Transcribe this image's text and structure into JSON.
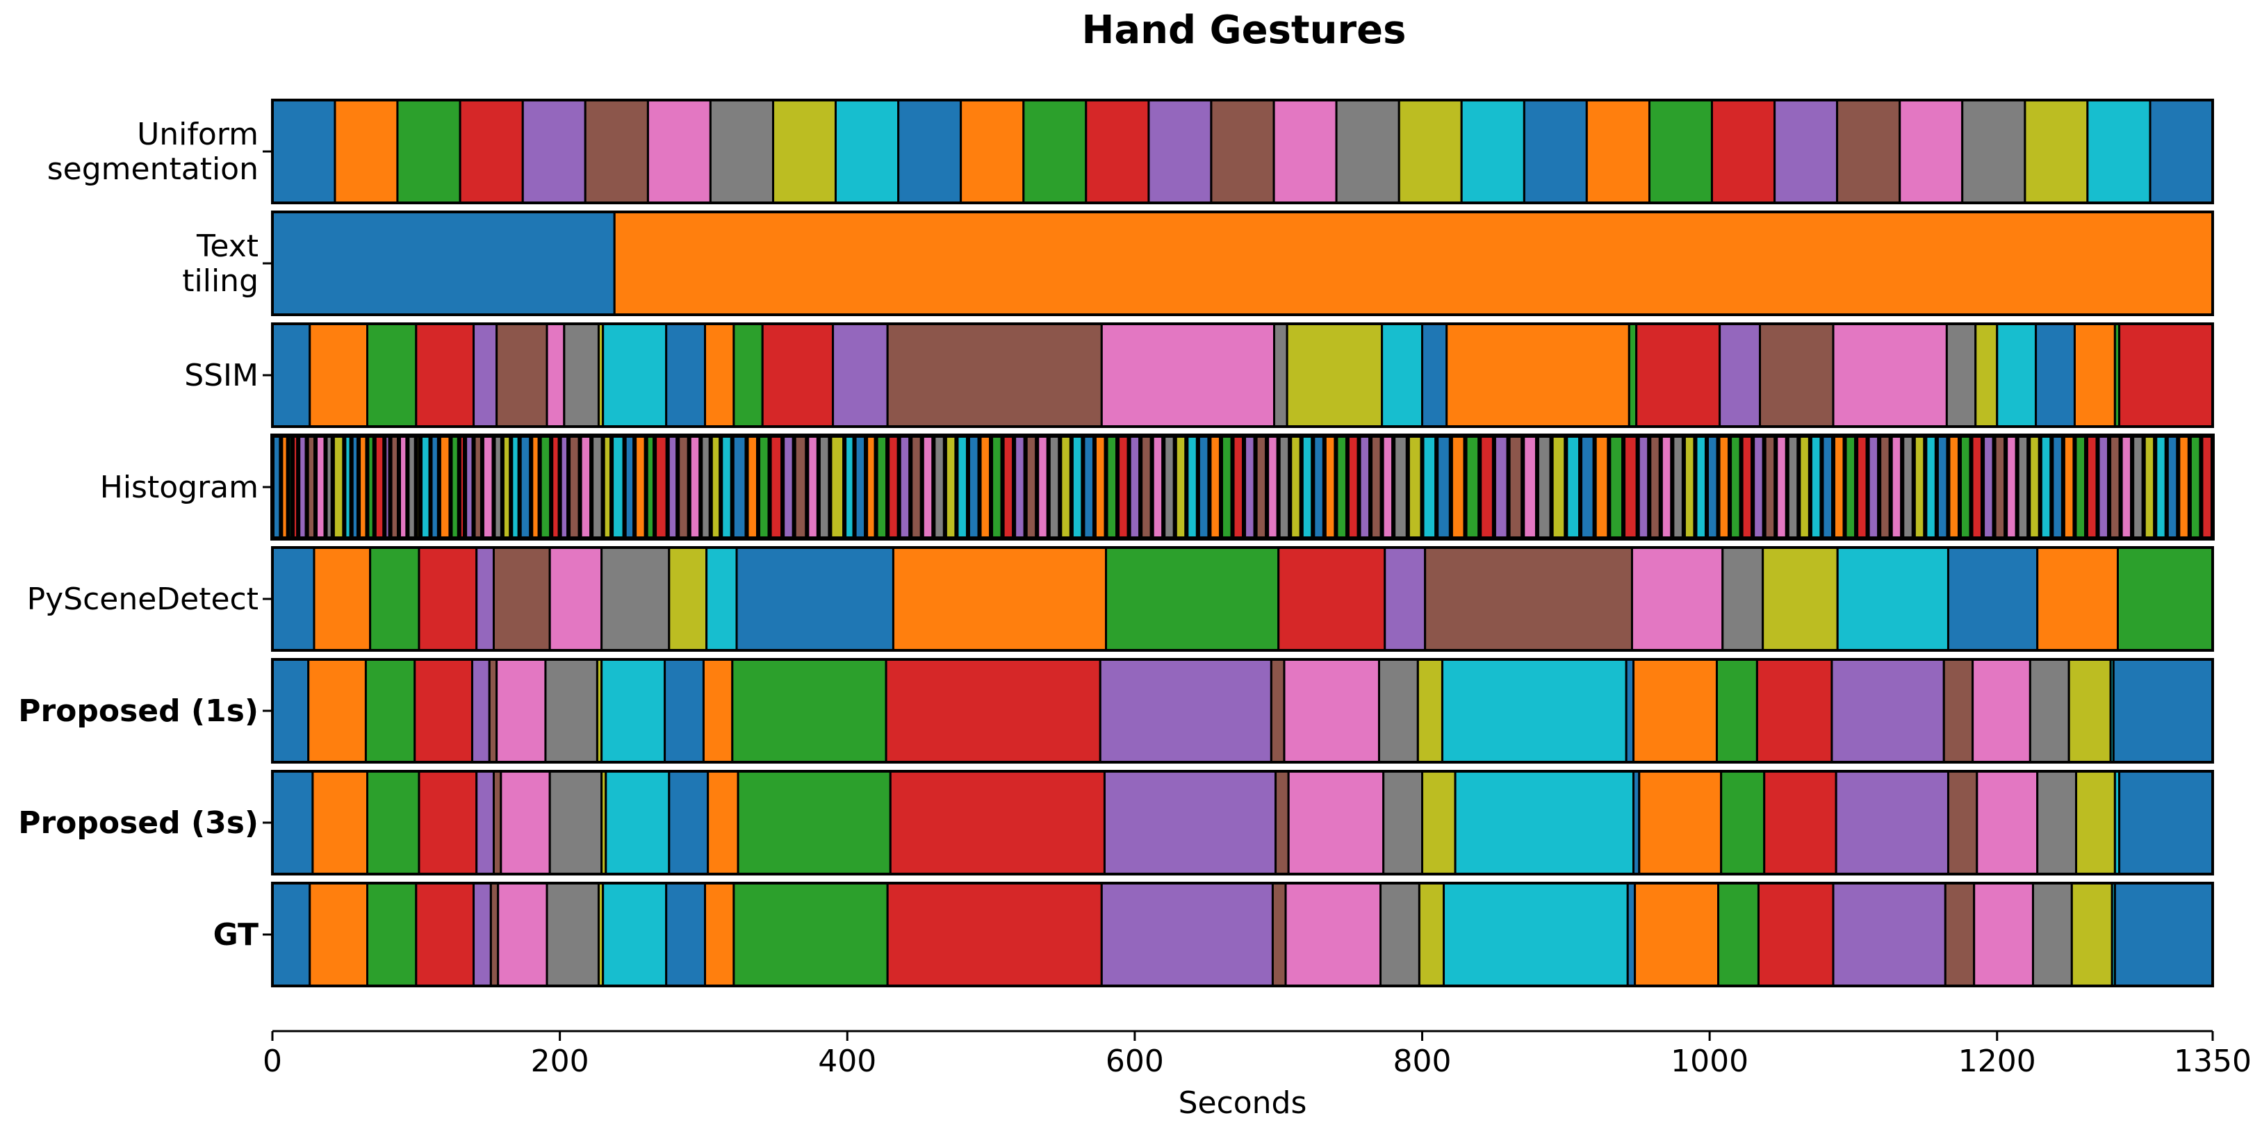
{
  "chart_data": {
    "type": "segmentation-timeline",
    "title": "Hand Gestures",
    "xlabel": "Seconds",
    "xlim": [
      0,
      1350
    ],
    "xticks": [
      0,
      200,
      400,
      600,
      800,
      1000,
      1200,
      1350
    ],
    "palette": [
      "#1f77b4",
      "#ff7f0e",
      "#2ca02c",
      "#d62728",
      "#9467bd",
      "#8c564b",
      "#e377c2",
      "#7f7f7f",
      "#bcbd22",
      "#17becf"
    ],
    "rows": [
      {
        "label_lines": [
          "Uniform",
          "segmentation"
        ],
        "bold": false,
        "boundaries": [
          0,
          43.5,
          87,
          130.6,
          174.2,
          217.7,
          261.3,
          304.8,
          348.4,
          391.9,
          435.5,
          479,
          522.6,
          566.1,
          609.7,
          653.2,
          696.8,
          740.3,
          783.9,
          827.4,
          871,
          914.5,
          958.1,
          1001.6,
          1045.2,
          1088.7,
          1132.3,
          1175.8,
          1219.4,
          1262.9,
          1306.5,
          1350
        ]
      },
      {
        "label_lines": [
          "Text",
          "tiling"
        ],
        "bold": false,
        "boundaries": [
          0,
          238,
          1350
        ]
      },
      {
        "label_lines": [
          "SSIM"
        ],
        "bold": false,
        "boundaries": [
          0,
          26,
          66,
          100,
          140,
          156,
          191,
          203,
          227,
          230,
          274,
          301,
          321,
          341,
          390,
          428,
          577,
          697,
          706,
          772,
          800,
          817,
          944,
          949,
          1007,
          1035,
          1086,
          1165,
          1185,
          1200,
          1227,
          1254,
          1282,
          1285,
          1350
        ]
      },
      {
        "label_lines": [
          "Histogram"
        ],
        "bold": false,
        "boundaries": [
          0,
          6,
          11,
          14,
          18,
          24,
          30,
          37,
          42,
          50,
          55,
          60,
          66,
          71,
          78,
          82,
          88,
          94,
          100,
          103,
          110,
          116,
          124,
          130,
          134,
          140,
          146,
          154,
          160,
          166,
          172,
          180,
          186,
          194,
          200,
          206,
          214,
          222,
          230,
          236,
          245,
          252,
          260,
          266,
          275,
          282,
          290,
          298,
          305,
          312,
          320,
          330,
          338,
          346,
          355,
          363,
          372,
          380,
          388,
          398,
          405,
          413,
          420,
          428,
          436,
          444,
          452,
          460,
          468,
          476,
          484,
          492,
          500,
          508,
          516,
          524,
          532,
          540,
          548,
          556,
          564,
          572,
          580,
          588,
          596,
          604,
          612,
          620,
          628,
          636,
          644,
          652,
          660,
          668,
          676,
          684,
          692,
          700,
          708,
          716,
          724,
          732,
          740,
          748,
          756,
          764,
          772,
          780,
          790,
          800,
          810,
          820,
          830,
          840,
          850,
          860,
          870,
          880,
          890,
          900,
          910,
          920,
          930,
          940,
          950,
          958,
          966,
          974,
          982,
          990,
          998,
          1006,
          1014,
          1022,
          1030,
          1038,
          1046,
          1054,
          1062,
          1070,
          1078,
          1086,
          1094,
          1102,
          1110,
          1118,
          1126,
          1134,
          1142,
          1150,
          1158,
          1166,
          1174,
          1182,
          1190,
          1198,
          1206,
          1214,
          1222,
          1230,
          1238,
          1246,
          1254,
          1262,
          1270,
          1278,
          1286,
          1294,
          1302,
          1310,
          1318,
          1326,
          1334,
          1342,
          1350
        ]
      },
      {
        "label_lines": [
          "PySceneDetect"
        ],
        "bold": false,
        "boundaries": [
          0,
          29,
          68,
          102,
          142,
          154,
          193,
          229,
          276,
          302,
          323,
          432,
          580,
          700,
          774,
          802,
          946,
          1009,
          1037,
          1089,
          1166,
          1228,
          1284,
          1350
        ]
      },
      {
        "label_lines": [
          "Proposed (1s)"
        ],
        "bold": true,
        "boundaries": [
          0,
          25,
          65,
          99,
          139,
          151,
          156,
          190,
          226,
          229,
          273,
          300,
          320,
          427,
          576,
          695,
          704,
          770,
          797,
          814,
          942,
          947,
          1005,
          1033,
          1085,
          1163,
          1183,
          1223,
          1250,
          1279,
          1281,
          1350
        ]
      },
      {
        "label_lines": [
          "Proposed (3s)"
        ],
        "bold": true,
        "boundaries": [
          0,
          28,
          66,
          102,
          142,
          154,
          159,
          193,
          229,
          232,
          276,
          303,
          324,
          430,
          579,
          698,
          707,
          773,
          800,
          823,
          947,
          951,
          1008,
          1038,
          1088,
          1166,
          1186,
          1228,
          1255,
          1282,
          1285,
          1350
        ]
      },
      {
        "label_lines": [
          "GT"
        ],
        "bold": true,
        "boundaries": [
          0,
          26,
          66,
          100,
          140,
          152,
          157,
          191,
          227,
          230,
          274,
          301,
          321,
          428,
          577,
          696,
          705,
          771,
          798,
          815,
          943,
          948,
          1006,
          1034,
          1086,
          1164,
          1184,
          1225,
          1252,
          1280,
          1282,
          1350
        ]
      }
    ]
  }
}
